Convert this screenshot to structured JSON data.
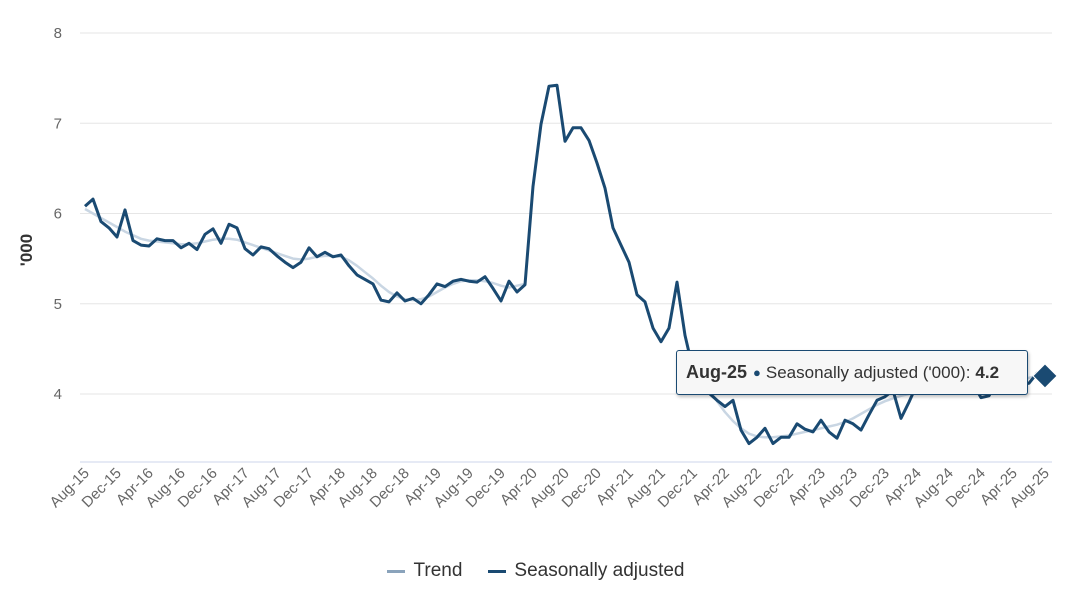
{
  "chart_data": {
    "type": "line",
    "title": "",
    "xlabel": "",
    "ylabel": "'000",
    "ylim": [
      3.25,
      8
    ],
    "yticks": [
      "4",
      "5",
      "6",
      "7",
      "8"
    ],
    "x_start": "Aug-15",
    "x_end": "Aug-25",
    "frequency": "monthly",
    "xtick_labels": [
      "Aug-15",
      "Dec-15",
      "Apr-16",
      "Aug-16",
      "Dec-16",
      "Apr-17",
      "Aug-17",
      "Dec-17",
      "Apr-18",
      "Aug-18",
      "Dec-18",
      "Apr-19",
      "Aug-19",
      "Dec-19",
      "Apr-20",
      "Aug-20",
      "Dec-20",
      "Apr-21",
      "Aug-21",
      "Dec-21",
      "Apr-22",
      "Aug-22",
      "Dec-22",
      "Apr-23",
      "Aug-23",
      "Dec-23",
      "Apr-24",
      "Aug-24",
      "Dec-24",
      "Apr-25",
      "Aug-25"
    ],
    "grid": true,
    "legend_placement": "bottom-center",
    "series": [
      {
        "name": "Trend",
        "color": "#c9d6e3",
        "values": [
          6.05,
          6.0,
          5.95,
          5.9,
          5.85,
          5.8,
          5.76,
          5.72,
          5.7,
          5.69,
          5.68,
          5.67,
          5.66,
          5.66,
          5.67,
          5.69,
          5.71,
          5.72,
          5.72,
          5.71,
          5.68,
          5.65,
          5.62,
          5.59,
          5.56,
          5.53,
          5.5,
          5.49,
          5.5,
          5.52,
          5.53,
          5.53,
          5.52,
          5.48,
          5.42,
          5.35,
          5.28,
          5.2,
          5.13,
          5.08,
          5.05,
          5.04,
          5.05,
          5.08,
          5.13,
          5.18,
          5.22,
          5.25,
          5.26,
          5.26,
          5.25,
          5.23,
          5.2,
          5.18,
          5.2,
          5.22,
          null,
          null,
          null,
          null,
          null,
          null,
          null,
          null,
          null,
          null,
          null,
          null,
          null,
          null,
          null,
          null,
          null,
          null,
          null,
          null,
          4.35,
          4.2,
          4.05,
          3.92,
          3.8,
          3.7,
          3.62,
          3.56,
          3.53,
          3.52,
          3.52,
          3.53,
          3.54,
          3.56,
          3.58,
          3.6,
          3.62,
          3.64,
          3.66,
          3.69,
          3.73,
          3.78,
          3.83,
          3.88,
          3.92,
          3.95,
          3.98,
          4.0,
          4.03,
          4.06,
          4.08,
          4.1,
          4.11,
          4.11,
          4.1,
          4.09,
          4.08,
          4.08,
          4.09,
          4.1,
          4.12,
          4.15,
          4.18,
          4.2,
          4.22
        ]
      },
      {
        "name": "Seasonally adjusted",
        "color": "#1a4a72",
        "values": [
          6.08,
          6.16,
          5.91,
          5.84,
          5.74,
          6.04,
          5.7,
          5.65,
          5.64,
          5.72,
          5.7,
          5.7,
          5.62,
          5.67,
          5.6,
          5.77,
          5.83,
          5.67,
          5.88,
          5.84,
          5.61,
          5.54,
          5.63,
          5.61,
          5.53,
          5.46,
          5.4,
          5.46,
          5.62,
          5.52,
          5.57,
          5.52,
          5.54,
          5.42,
          5.32,
          5.27,
          5.22,
          5.04,
          5.02,
          5.12,
          5.03,
          5.06,
          5.0,
          5.1,
          5.22,
          5.19,
          5.25,
          5.27,
          5.25,
          5.24,
          5.3,
          5.17,
          5.03,
          5.25,
          5.13,
          5.21,
          6.3,
          6.99,
          7.41,
          7.42,
          6.8,
          6.95,
          6.95,
          6.81,
          6.56,
          6.28,
          5.84,
          5.65,
          5.46,
          5.1,
          5.02,
          4.73,
          4.58,
          4.73,
          5.24,
          4.65,
          4.27,
          4.11,
          4.01,
          3.93,
          3.86,
          3.93,
          3.6,
          3.45,
          3.52,
          3.62,
          3.45,
          3.52,
          3.52,
          3.67,
          3.61,
          3.58,
          3.71,
          3.58,
          3.51,
          3.71,
          3.67,
          3.6,
          3.77,
          3.93,
          3.97,
          4.04,
          3.73,
          3.91,
          4.11,
          4.02,
          4.04,
          4.18,
          4.22,
          4.13,
          4.1,
          4.12,
          3.96,
          3.98,
          4.16,
          4.09,
          4.09,
          4.1,
          4.12,
          4.23,
          4.2
        ]
      }
    ]
  },
  "tooltip": {
    "date": "Aug-25",
    "series": "Seasonally adjusted ('000):",
    "value": "4.2"
  },
  "legend": {
    "trend": "Trend",
    "sa": "Seasonally adjusted"
  }
}
